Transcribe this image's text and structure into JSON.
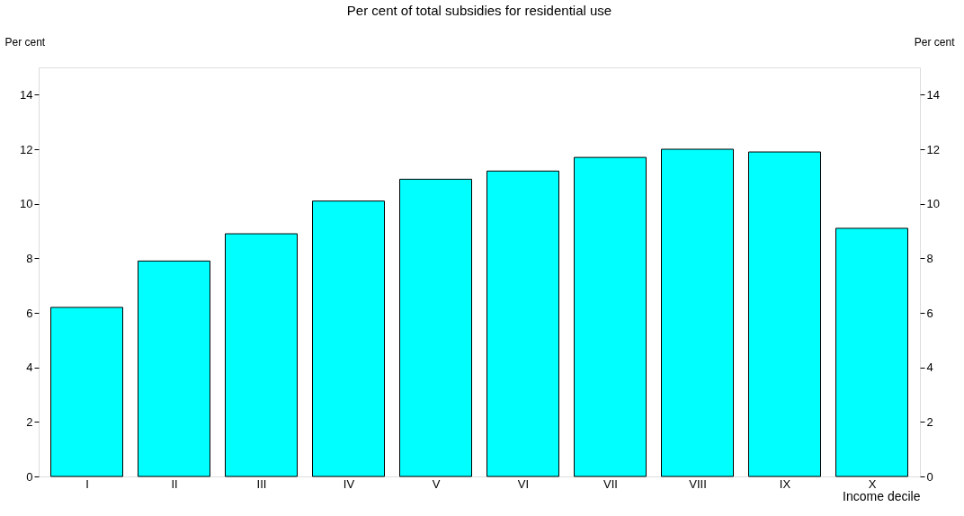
{
  "chart_data": {
    "type": "bar",
    "title": "Per cent of total subsidies for residential use",
    "xlabel": "Income decile",
    "ylabel": "Per cent",
    "y2label": "Per cent",
    "categories": [
      "I",
      "II",
      "III",
      "IV",
      "V",
      "VI",
      "VII",
      "VIII",
      "IX",
      "X"
    ],
    "values": [
      6.2,
      7.9,
      8.9,
      10.1,
      10.9,
      11.2,
      11.7,
      12.0,
      11.9,
      9.1
    ],
    "color": "#00ffff",
    "ylim": [
      0,
      15
    ],
    "yticks": [
      0,
      2,
      4,
      6,
      8,
      10,
      12,
      14
    ],
    "y2lim": [
      0,
      15
    ],
    "y2ticks": [
      0,
      2,
      4,
      6,
      8,
      10,
      12,
      14
    ],
    "grid": false
  }
}
